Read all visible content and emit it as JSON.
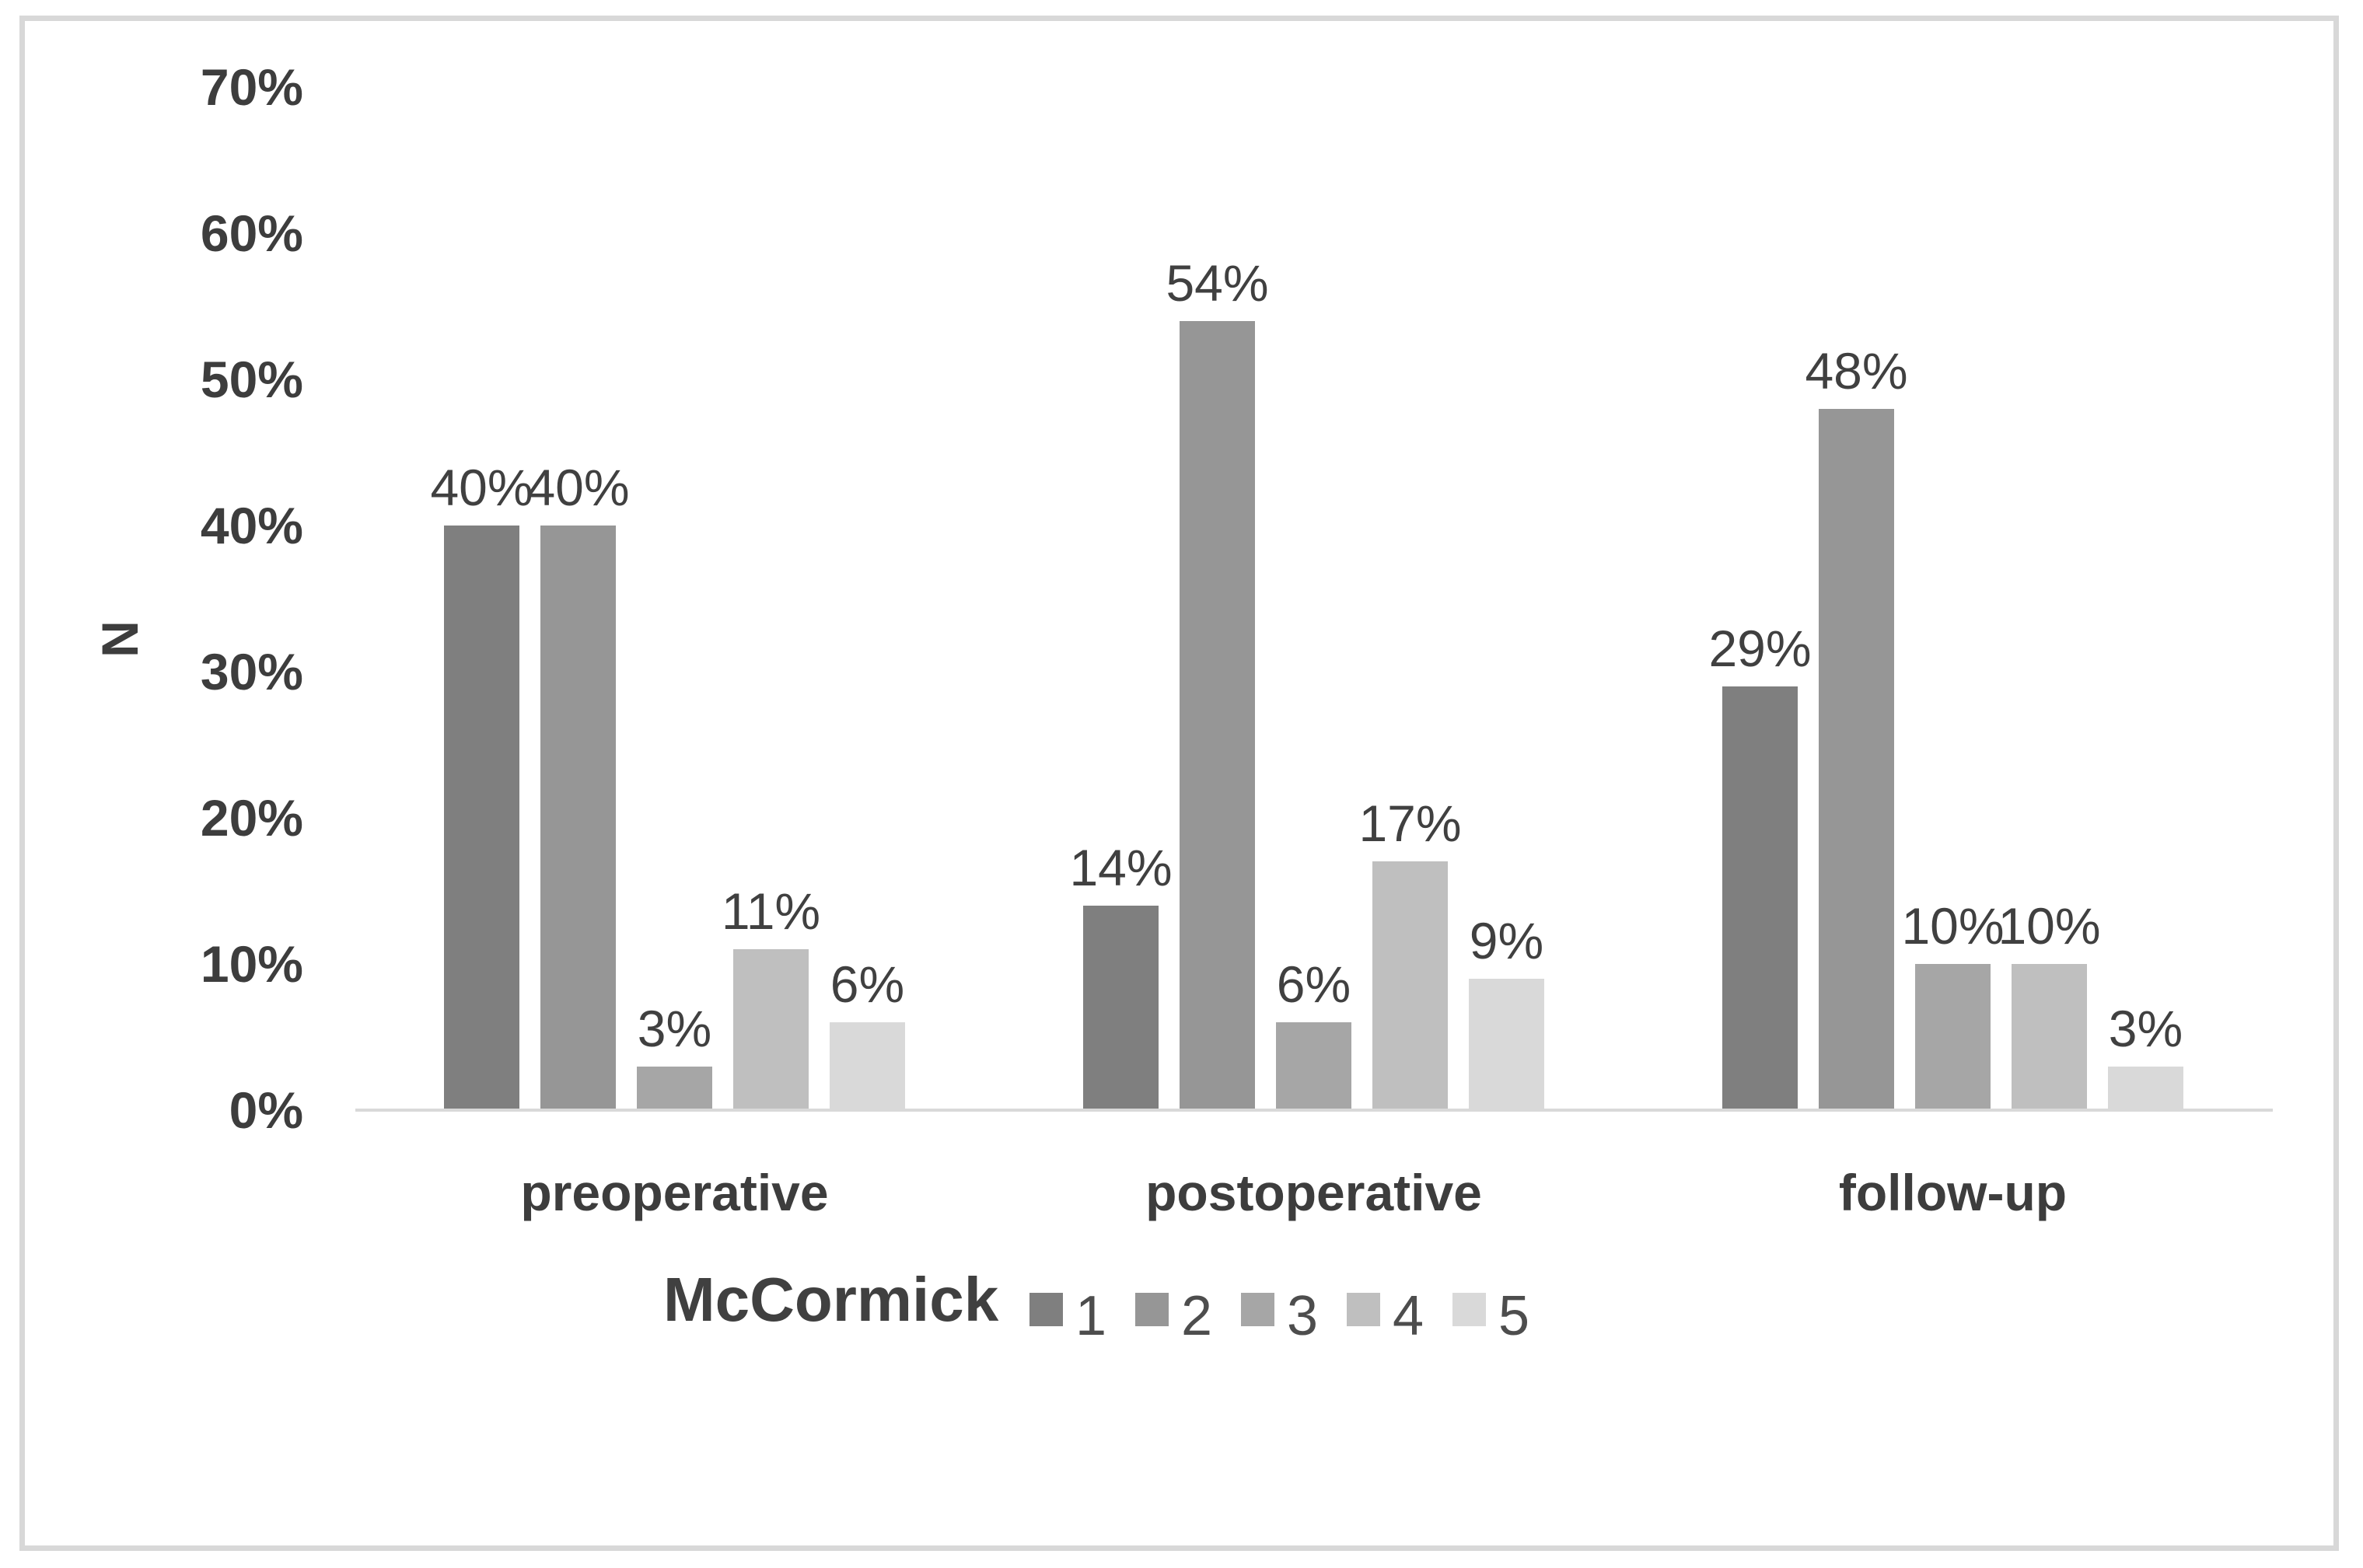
{
  "chart_data": {
    "type": "bar",
    "title": "",
    "categories": [
      "preoperative",
      "postoperative",
      "follow-up"
    ],
    "series": [
      {
        "name": "1",
        "color": "#7f7f7f",
        "values": [
          40,
          14,
          29
        ]
      },
      {
        "name": "2",
        "color": "#969696",
        "values": [
          40,
          54,
          48
        ]
      },
      {
        "name": "3",
        "color": "#a6a6a6",
        "values": [
          3,
          6,
          10
        ]
      },
      {
        "name": "4",
        "color": "#bfbfbf",
        "values": [
          11,
          17,
          10
        ]
      },
      {
        "name": "5",
        "color": "#d9d9d9",
        "values": [
          6,
          9,
          3
        ]
      }
    ],
    "data_labels": [
      [
        "40%",
        "40%",
        "3%",
        "11%",
        "6%"
      ],
      [
        "14%",
        "54%",
        "6%",
        "17%",
        "9%"
      ],
      [
        "29%",
        "48%",
        "10%",
        "10%",
        "3%"
      ]
    ],
    "xlabel": "",
    "ylabel": "N",
    "ylim": [
      0,
      70
    ],
    "ytick_step": 10,
    "yticks": [
      "0%",
      "10%",
      "20%",
      "30%",
      "40%",
      "50%",
      "60%",
      "70%"
    ],
    "grid": "off",
    "legend_title": "McCormick",
    "legend_entries": [
      "1",
      "2",
      "3",
      "4",
      "5"
    ],
    "legend_position": "bottom",
    "frame_color": "#d8d8d8",
    "axis_color": "#d9d9d9",
    "text_color": "#404040"
  }
}
